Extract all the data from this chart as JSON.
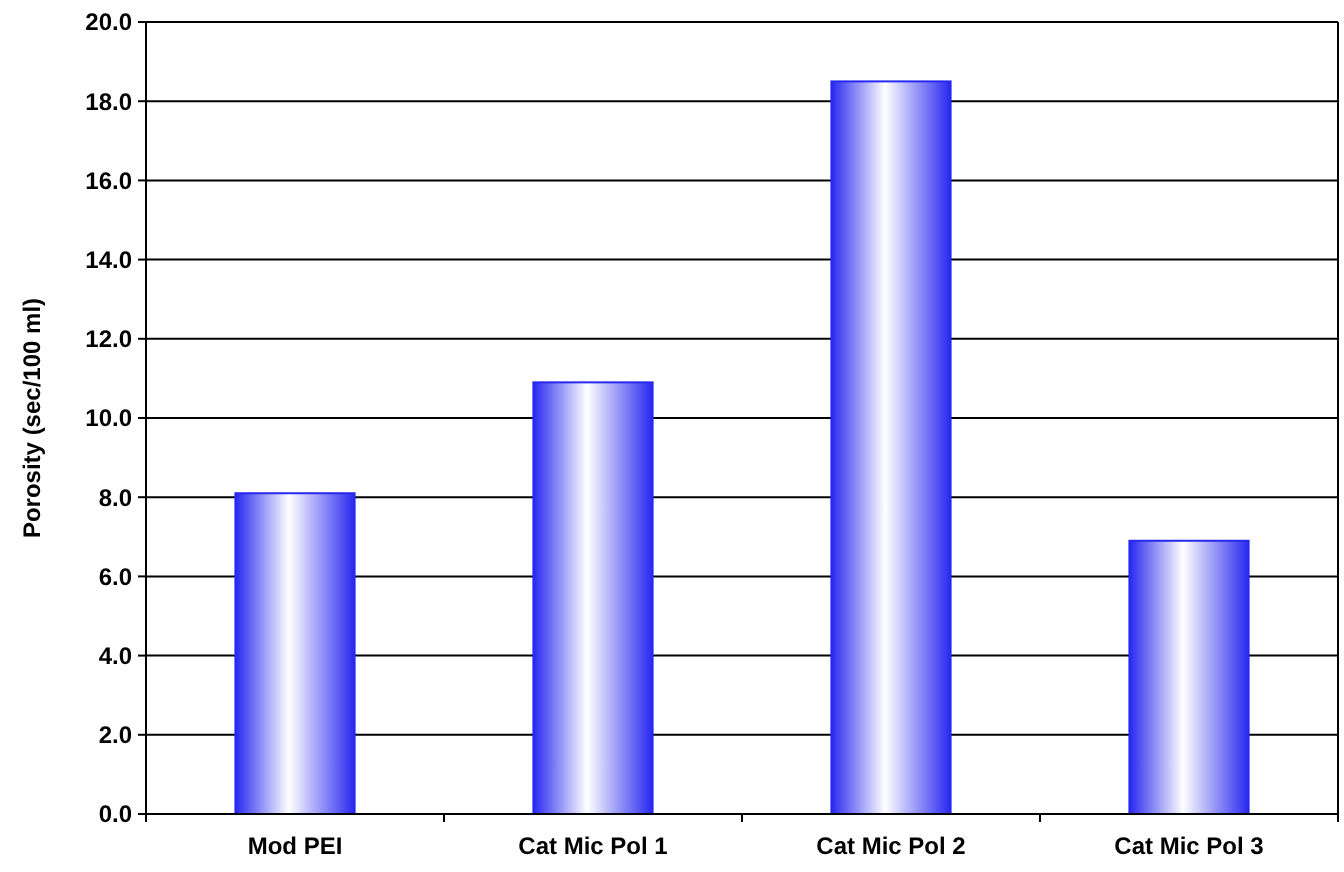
{
  "chart_data": {
    "type": "bar",
    "ylabel": "Porosity (sec/100 ml)",
    "categories": [
      "Mod PEI",
      "Cat Mic Pol 1",
      "Cat Mic Pol 2",
      "Cat Mic Pol 3"
    ],
    "values": [
      8.1,
      10.9,
      18.5,
      6.9
    ],
    "color": "#2828f0",
    "ylim": [
      0,
      20
    ],
    "yticks": [
      {
        "value": 0,
        "label": "0.0"
      },
      {
        "value": 2,
        "label": "2.0"
      },
      {
        "value": 4,
        "label": "4.0"
      },
      {
        "value": 6,
        "label": "6.0"
      },
      {
        "value": 8,
        "label": "8.0"
      },
      {
        "value": 10,
        "label": "10.0"
      },
      {
        "value": 12,
        "label": "12.0"
      },
      {
        "value": 14,
        "label": "14.0"
      },
      {
        "value": 16,
        "label": "16.0"
      },
      {
        "value": 18,
        "label": "18.0"
      },
      {
        "value": 20,
        "label": "20.0"
      }
    ],
    "grid": "y"
  }
}
